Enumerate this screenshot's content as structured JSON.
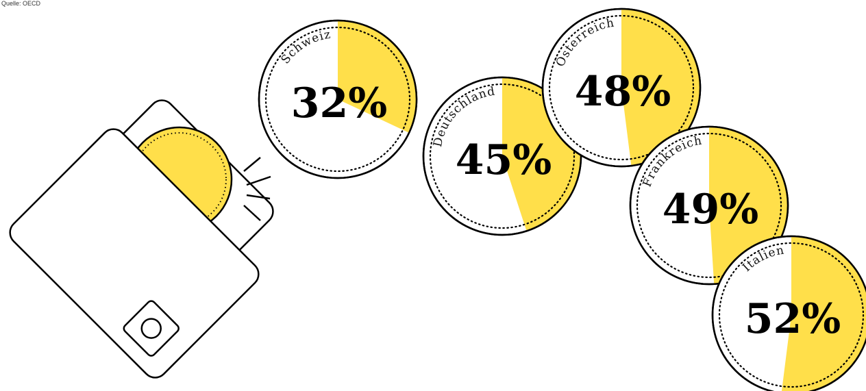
{
  "chart_data": {
    "type": "pie",
    "source": "Quelle: OECD",
    "categories": [
      "Schweiz",
      "Deutschland",
      "Österreich",
      "Frankreich",
      "Italien"
    ],
    "values": [
      32,
      45,
      48,
      49,
      52
    ],
    "value_labels": [
      "32%",
      "45%",
      "48%",
      "49%",
      "52%"
    ],
    "color": "#ffdf4a"
  }
}
